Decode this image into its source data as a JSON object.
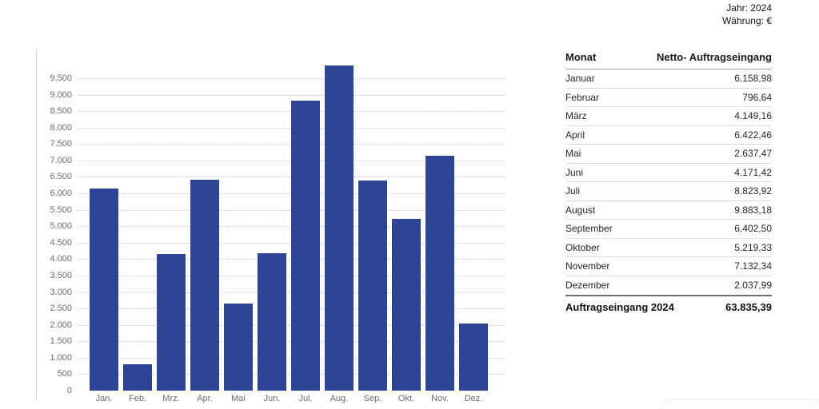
{
  "page": {
    "jahr_label": "Jahr: 2024",
    "waehrung_label": "Währung: €"
  },
  "chart_data": {
    "type": "bar",
    "categories": [
      "Jan.",
      "Feb.",
      "Mrz.",
      "Apr.",
      "Mai",
      "Jun.",
      "Jul.",
      "Aug.",
      "Sep.",
      "Okt.",
      "Nov.",
      "Dez."
    ],
    "values": [
      6158.98,
      796.64,
      4149.16,
      6422.46,
      2637.47,
      4171.42,
      8823.92,
      9883.18,
      6402.5,
      5219.33,
      7132.34,
      2037.99
    ],
    "title": "",
    "xlabel": "",
    "ylabel": "",
    "ylim": [
      0,
      9500
    ],
    "ytick_step": 500,
    "grid": true,
    "legend": false,
    "bar_color": "#2e4494",
    "gridline_color": "#cdcdcd"
  },
  "table": {
    "headers": [
      "Monat",
      "Netto- Auftragseingang"
    ],
    "rows": [
      {
        "month": "Januar",
        "value": "6.158,98"
      },
      {
        "month": "Februar",
        "value": "796,64"
      },
      {
        "month": "März",
        "value": "4.149,16"
      },
      {
        "month": "April",
        "value": "6.422,46"
      },
      {
        "month": "Mai",
        "value": "2.637,47"
      },
      {
        "month": "Juni",
        "value": "4.171,42"
      },
      {
        "month": "Juli",
        "value": "8.823,92"
      },
      {
        "month": "August",
        "value": "9.883,18"
      },
      {
        "month": "September",
        "value": "6.402,50"
      },
      {
        "month": "Oktober",
        "value": "5.219,33"
      },
      {
        "month": "November",
        "value": "7.132,34"
      },
      {
        "month": "Dezember",
        "value": "2.037,99"
      }
    ],
    "total": {
      "label": "Auftragseingang 2024",
      "value": "63.835,39"
    }
  }
}
